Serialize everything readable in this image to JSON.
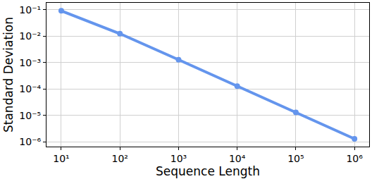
{
  "chart_data": {
    "type": "line",
    "log": true,
    "grid": true,
    "color": "#6495ed",
    "marker": "circle",
    "x_label": "Sequence Length",
    "y_label": "Standard Deviation",
    "x": [
      10,
      100,
      1000,
      10000,
      100000,
      1000000
    ],
    "values": [
      0.092,
      0.0125,
      0.00128,
      0.000128,
      1.28e-05,
      1.28e-06
    ],
    "xlim": [
      5.6,
      1780000
    ],
    "ylim": [
      6.5e-07,
      0.185
    ],
    "xticks": [
      {
        "value": 10,
        "label": "10¹"
      },
      {
        "value": 100,
        "label": "10²"
      },
      {
        "value": 1000,
        "label": "10³"
      },
      {
        "value": 10000,
        "label": "10⁴"
      },
      {
        "value": 100000,
        "label": "10⁵"
      },
      {
        "value": 1000000,
        "label": "10⁶"
      }
    ],
    "yticks": [
      {
        "value": 0.1,
        "label": "10⁻¹"
      },
      {
        "value": 0.01,
        "label": "10⁻²"
      },
      {
        "value": 0.001,
        "label": "10⁻³"
      },
      {
        "value": 0.0001,
        "label": "10⁻⁴"
      },
      {
        "value": 1e-05,
        "label": "10⁻⁵"
      },
      {
        "value": 1e-06,
        "label": "10⁻⁶"
      }
    ]
  }
}
